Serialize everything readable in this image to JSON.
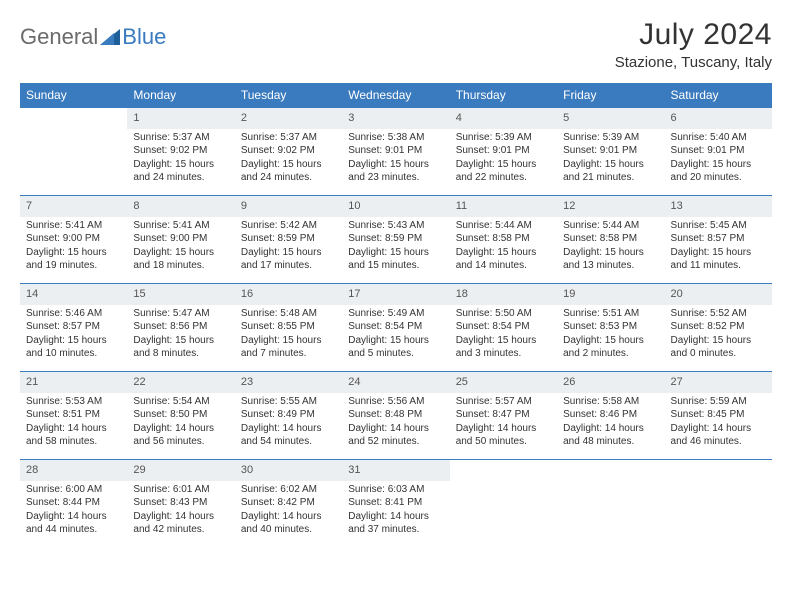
{
  "brand": {
    "general": "General",
    "blue": "Blue"
  },
  "title": "July 2024",
  "location": "Stazione, Tuscany, Italy",
  "weekdays": [
    "Sunday",
    "Monday",
    "Tuesday",
    "Wednesday",
    "Thursday",
    "Friday",
    "Saturday"
  ],
  "colors": {
    "header_bg": "#3a7bbf",
    "header_text": "#ffffff",
    "daynum_bg": "#eceff1",
    "daynum_border": "#3a7bbf",
    "text": "#333333"
  },
  "weeks": [
    [
      {
        "n": "",
        "sr": "",
        "ss": "",
        "dl": ""
      },
      {
        "n": "1",
        "sr": "Sunrise: 5:37 AM",
        "ss": "Sunset: 9:02 PM",
        "dl": "Daylight: 15 hours and 24 minutes."
      },
      {
        "n": "2",
        "sr": "Sunrise: 5:37 AM",
        "ss": "Sunset: 9:02 PM",
        "dl": "Daylight: 15 hours and 24 minutes."
      },
      {
        "n": "3",
        "sr": "Sunrise: 5:38 AM",
        "ss": "Sunset: 9:01 PM",
        "dl": "Daylight: 15 hours and 23 minutes."
      },
      {
        "n": "4",
        "sr": "Sunrise: 5:39 AM",
        "ss": "Sunset: 9:01 PM",
        "dl": "Daylight: 15 hours and 22 minutes."
      },
      {
        "n": "5",
        "sr": "Sunrise: 5:39 AM",
        "ss": "Sunset: 9:01 PM",
        "dl": "Daylight: 15 hours and 21 minutes."
      },
      {
        "n": "6",
        "sr": "Sunrise: 5:40 AM",
        "ss": "Sunset: 9:01 PM",
        "dl": "Daylight: 15 hours and 20 minutes."
      }
    ],
    [
      {
        "n": "7",
        "sr": "Sunrise: 5:41 AM",
        "ss": "Sunset: 9:00 PM",
        "dl": "Daylight: 15 hours and 19 minutes."
      },
      {
        "n": "8",
        "sr": "Sunrise: 5:41 AM",
        "ss": "Sunset: 9:00 PM",
        "dl": "Daylight: 15 hours and 18 minutes."
      },
      {
        "n": "9",
        "sr": "Sunrise: 5:42 AM",
        "ss": "Sunset: 8:59 PM",
        "dl": "Daylight: 15 hours and 17 minutes."
      },
      {
        "n": "10",
        "sr": "Sunrise: 5:43 AM",
        "ss": "Sunset: 8:59 PM",
        "dl": "Daylight: 15 hours and 15 minutes."
      },
      {
        "n": "11",
        "sr": "Sunrise: 5:44 AM",
        "ss": "Sunset: 8:58 PM",
        "dl": "Daylight: 15 hours and 14 minutes."
      },
      {
        "n": "12",
        "sr": "Sunrise: 5:44 AM",
        "ss": "Sunset: 8:58 PM",
        "dl": "Daylight: 15 hours and 13 minutes."
      },
      {
        "n": "13",
        "sr": "Sunrise: 5:45 AM",
        "ss": "Sunset: 8:57 PM",
        "dl": "Daylight: 15 hours and 11 minutes."
      }
    ],
    [
      {
        "n": "14",
        "sr": "Sunrise: 5:46 AM",
        "ss": "Sunset: 8:57 PM",
        "dl": "Daylight: 15 hours and 10 minutes."
      },
      {
        "n": "15",
        "sr": "Sunrise: 5:47 AM",
        "ss": "Sunset: 8:56 PM",
        "dl": "Daylight: 15 hours and 8 minutes."
      },
      {
        "n": "16",
        "sr": "Sunrise: 5:48 AM",
        "ss": "Sunset: 8:55 PM",
        "dl": "Daylight: 15 hours and 7 minutes."
      },
      {
        "n": "17",
        "sr": "Sunrise: 5:49 AM",
        "ss": "Sunset: 8:54 PM",
        "dl": "Daylight: 15 hours and 5 minutes."
      },
      {
        "n": "18",
        "sr": "Sunrise: 5:50 AM",
        "ss": "Sunset: 8:54 PM",
        "dl": "Daylight: 15 hours and 3 minutes."
      },
      {
        "n": "19",
        "sr": "Sunrise: 5:51 AM",
        "ss": "Sunset: 8:53 PM",
        "dl": "Daylight: 15 hours and 2 minutes."
      },
      {
        "n": "20",
        "sr": "Sunrise: 5:52 AM",
        "ss": "Sunset: 8:52 PM",
        "dl": "Daylight: 15 hours and 0 minutes."
      }
    ],
    [
      {
        "n": "21",
        "sr": "Sunrise: 5:53 AM",
        "ss": "Sunset: 8:51 PM",
        "dl": "Daylight: 14 hours and 58 minutes."
      },
      {
        "n": "22",
        "sr": "Sunrise: 5:54 AM",
        "ss": "Sunset: 8:50 PM",
        "dl": "Daylight: 14 hours and 56 minutes."
      },
      {
        "n": "23",
        "sr": "Sunrise: 5:55 AM",
        "ss": "Sunset: 8:49 PM",
        "dl": "Daylight: 14 hours and 54 minutes."
      },
      {
        "n": "24",
        "sr": "Sunrise: 5:56 AM",
        "ss": "Sunset: 8:48 PM",
        "dl": "Daylight: 14 hours and 52 minutes."
      },
      {
        "n": "25",
        "sr": "Sunrise: 5:57 AM",
        "ss": "Sunset: 8:47 PM",
        "dl": "Daylight: 14 hours and 50 minutes."
      },
      {
        "n": "26",
        "sr": "Sunrise: 5:58 AM",
        "ss": "Sunset: 8:46 PM",
        "dl": "Daylight: 14 hours and 48 minutes."
      },
      {
        "n": "27",
        "sr": "Sunrise: 5:59 AM",
        "ss": "Sunset: 8:45 PM",
        "dl": "Daylight: 14 hours and 46 minutes."
      }
    ],
    [
      {
        "n": "28",
        "sr": "Sunrise: 6:00 AM",
        "ss": "Sunset: 8:44 PM",
        "dl": "Daylight: 14 hours and 44 minutes."
      },
      {
        "n": "29",
        "sr": "Sunrise: 6:01 AM",
        "ss": "Sunset: 8:43 PM",
        "dl": "Daylight: 14 hours and 42 minutes."
      },
      {
        "n": "30",
        "sr": "Sunrise: 6:02 AM",
        "ss": "Sunset: 8:42 PM",
        "dl": "Daylight: 14 hours and 40 minutes."
      },
      {
        "n": "31",
        "sr": "Sunrise: 6:03 AM",
        "ss": "Sunset: 8:41 PM",
        "dl": "Daylight: 14 hours and 37 minutes."
      },
      {
        "n": "",
        "sr": "",
        "ss": "",
        "dl": ""
      },
      {
        "n": "",
        "sr": "",
        "ss": "",
        "dl": ""
      },
      {
        "n": "",
        "sr": "",
        "ss": "",
        "dl": ""
      }
    ]
  ]
}
